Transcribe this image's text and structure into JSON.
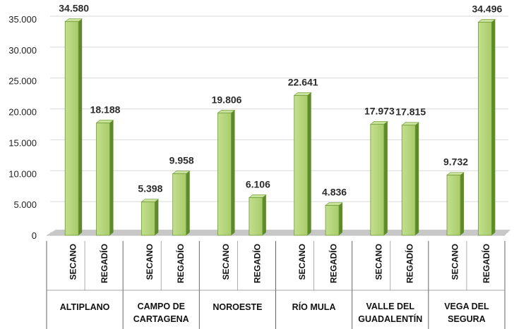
{
  "chart_data": {
    "type": "bar",
    "title": "",
    "xlabel": "",
    "ylabel": "",
    "ylim": [
      0,
      35000
    ],
    "y_ticks": [
      "0",
      "5.000",
      "10.000",
      "15.000",
      "20.000",
      "25.000",
      "30.000",
      "35.000"
    ],
    "y_tick_values": [
      0,
      5000,
      10000,
      15000,
      20000,
      25000,
      30000,
      35000
    ],
    "grid": true,
    "style": "3d-column",
    "colors": {
      "bar_front": "#a8cc6a",
      "bar_side": "#5f8a2c",
      "bar_top": "#c9e29a",
      "floor": "#c8c8c8",
      "grid": "#d9d9d9"
    },
    "groups": [
      {
        "label_lines": [
          "ALTIPLANO"
        ],
        "bars": [
          {
            "label": "SECANO",
            "value": 34580,
            "value_label": "34.580"
          },
          {
            "label": "REGADÍO",
            "value": 18188,
            "value_label": "18.188"
          }
        ]
      },
      {
        "label_lines": [
          "CAMPO DE",
          "CARTAGENA"
        ],
        "bars": [
          {
            "label": "SECANO",
            "value": 5398,
            "value_label": "5.398"
          },
          {
            "label": "REGADÍO",
            "value": 9958,
            "value_label": "9.958"
          }
        ]
      },
      {
        "label_lines": [
          "NOROESTE"
        ],
        "bars": [
          {
            "label": "SECANO",
            "value": 19806,
            "value_label": "19.806"
          },
          {
            "label": "REGADÍO",
            "value": 6106,
            "value_label": "6.106"
          }
        ]
      },
      {
        "label_lines": [
          "RÍO MULA"
        ],
        "bars": [
          {
            "label": "SECANO",
            "value": 22641,
            "value_label": "22.641"
          },
          {
            "label": "REGADÍO",
            "value": 4836,
            "value_label": "4.836"
          }
        ]
      },
      {
        "label_lines": [
          "VALLE DEL",
          "GUADALENTÍN"
        ],
        "bars": [
          {
            "label": "SECANO",
            "value": 17973,
            "value_label": "17.973"
          },
          {
            "label": "REGADÍO",
            "value": 17815,
            "value_label": "17.815"
          }
        ]
      },
      {
        "label_lines": [
          "VEGA DEL",
          "SEGURA"
        ],
        "bars": [
          {
            "label": "SECANO",
            "value": 9732,
            "value_label": "9.732"
          },
          {
            "label": "REGADÍO",
            "value": 34496,
            "value_label": "34.496"
          }
        ]
      }
    ]
  }
}
